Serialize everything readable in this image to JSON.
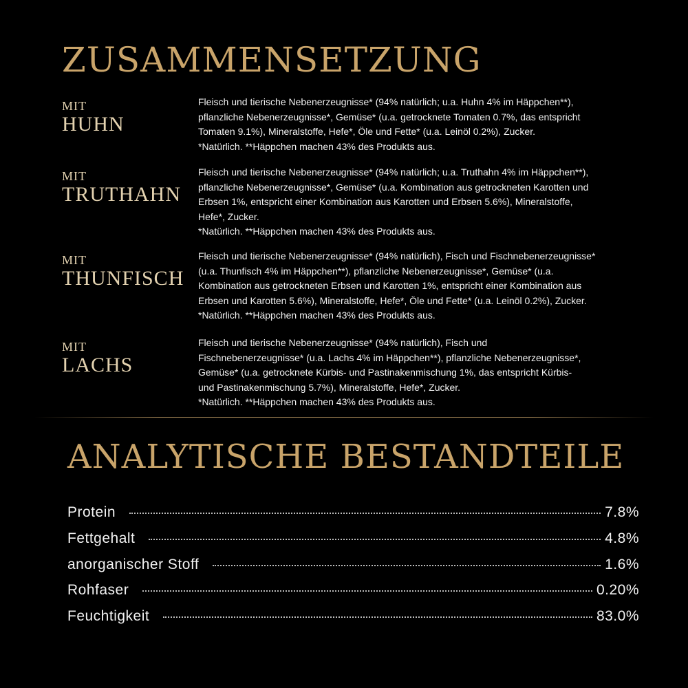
{
  "colors": {
    "background": "#000000",
    "title_gold": "#c9a46a",
    "label_gold": "#e3d2b0",
    "text": "#f2f2f2"
  },
  "composition": {
    "title": "ZUSAMMENSETZUNG",
    "variants": [
      {
        "prefix": "MIT",
        "name": "HUHN",
        "lines": [
          "Fleisch und tierische Nebenerzeugnisse* (94% natürlich; u.a. Huhn 4% im Häppchen**),",
          "pflanzliche Nebenerzeugnisse*, Gemüse* (u.a. getrocknete Tomaten 0.7%, das entspricht",
          "Tomaten 9.1%), Mineralstoffe, Hefe*, Öle und Fette* (u.a. Leinöl 0.2%), Zucker.",
          "*Natürlich. **Häppchen machen 43% des Produkts aus."
        ]
      },
      {
        "prefix": "MIT",
        "name": "TRUTHAHN",
        "lines": [
          "Fleisch und tierische Nebenerzeugnisse* (94% natürlich; u.a. Truthahn 4% im Häppchen**),",
          "pflanzliche Nebenerzeugnisse*, Gemüse* (u.a. Kombination aus getrockneten Karotten und",
          "Erbsen 1%, entspricht einer Kombination aus Karotten und Erbsen 5.6%), Mineralstoffe,",
          "Hefe*, Zucker.",
          "*Natürlich. **Häppchen machen 43% des Produkts aus."
        ]
      },
      {
        "prefix": "MIT",
        "name": "THUNFISCH",
        "lines": [
          "Fleisch und tierische Nebenerzeugnisse* (94% natürlich), Fisch und Fischnebenerzeugnisse*",
          "(u.a. Thunfisch 4% im Häppchen**), pflanzliche Nebenerzeugnisse*, Gemüse* (u.a.",
          "Kombination aus getrockneten Erbsen und Karotten 1%, entspricht einer Kombination aus",
          "Erbsen und Karotten 5.6%), Mineralstoffe, Hefe*, Öle und Fette* (u.a. Leinöl 0.2%), Zucker.",
          "*Natürlich. **Häppchen machen 43% des Produkts aus."
        ]
      },
      {
        "prefix": "MIT",
        "name": "LACHS",
        "lines": [
          "Fleisch und tierische Nebenerzeugnisse* (94% natürlich), Fisch und",
          "Fischnebenerzeugnisse* (u.a. Lachs 4% im Häppchen**), pflanzliche Nebenerzeugnisse*,",
          "Gemüse* (u.a. getrocknete Kürbis- und Pastinakenmischung 1%, das entspricht Kürbis-",
          "und Pastinakenmischung 5.7%), Mineralstoffe, Hefe*, Zucker.",
          "*Natürlich. **Häppchen machen 43% des Produkts aus."
        ]
      }
    ]
  },
  "analysis": {
    "title": "ANALYTISCHE BESTANDTEILE",
    "rows": [
      {
        "label": "Protein",
        "value": "7.8%"
      },
      {
        "label": "Fettgehalt",
        "value": "4.8%"
      },
      {
        "label": "anorganischer Stoff",
        "value": "1.6%"
      },
      {
        "label": "Rohfaser",
        "value": "0.20%"
      },
      {
        "label": "Feuchtigkeit",
        "value": "83.0%"
      }
    ]
  }
}
